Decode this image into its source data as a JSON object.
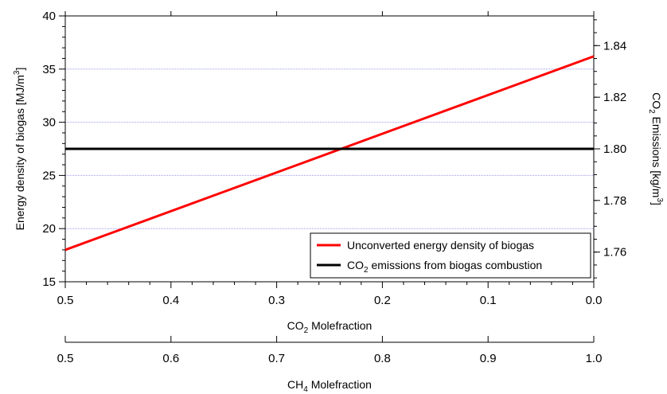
{
  "chart_data": {
    "type": "line",
    "x_axis_primary": {
      "label_main": "CO",
      "label_sub": "2",
      "label_rest": " Molefraction",
      "range": [
        0.5,
        0.0
      ],
      "ticks": [
        0.5,
        0.4,
        0.3,
        0.2,
        0.1,
        0.0
      ],
      "tick_labels": [
        "0.5",
        "0.4",
        "0.3",
        "0.2",
        "0.1",
        "0.0"
      ]
    },
    "x_axis_secondary": {
      "label_main": "CH",
      "label_sub": "4",
      "label_rest": " Molefraction",
      "range": [
        0.5,
        1.0
      ],
      "ticks": [
        0.5,
        0.6,
        0.7,
        0.8,
        0.9,
        1.0
      ],
      "tick_labels": [
        "0.5",
        "0.6",
        "0.7",
        "0.8",
        "0.9",
        "1.0"
      ]
    },
    "y_axis_left": {
      "label_main": "Energy density of biogas  [MJ/m",
      "label_sup": "3",
      "label_rest": "]",
      "range": [
        15,
        40
      ],
      "ticks": [
        15,
        20,
        25,
        30,
        35,
        40
      ],
      "tick_labels": [
        "15",
        "20",
        "25",
        "30",
        "35",
        "40"
      ]
    },
    "y_axis_right": {
      "label_main": "CO",
      "label_sub": "2",
      "label_mid": " Emissions [kg/m",
      "label_sup": "3",
      "label_rest": "]",
      "range": [
        1.7485,
        1.8515
      ],
      "ticks": [
        1.76,
        1.78,
        1.8,
        1.82,
        1.84
      ],
      "tick_labels": [
        "1.76",
        "1.78",
        "1.80",
        "1.82",
        "1.84"
      ]
    },
    "grid": true,
    "grid_color": "#9999ee",
    "legend_position": "bottom-right",
    "series": [
      {
        "name": "Unconverted energy density of biogas",
        "axis": "left",
        "color": "#ff0000",
        "x": [
          0.5,
          0.0
        ],
        "y": [
          18.0,
          36.2
        ]
      },
      {
        "name_main": "CO",
        "name_sub": "2",
        "name_rest": " emissions from biogas combustion",
        "axis": "right",
        "color": "#000000",
        "x": [
          0.5,
          0.0
        ],
        "y": [
          1.8,
          1.8
        ]
      }
    ]
  }
}
